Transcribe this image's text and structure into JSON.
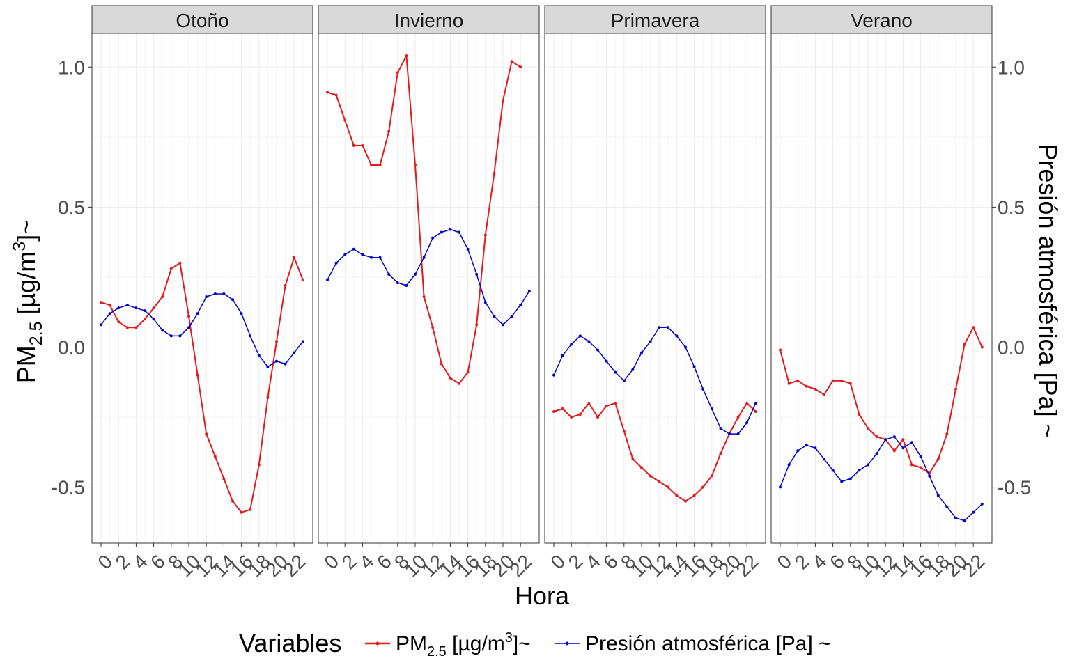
{
  "chart_data": {
    "type": "line",
    "facets": [
      "Otoño",
      "Invierno",
      "Primavera",
      "Verano"
    ],
    "x": [
      0,
      1,
      2,
      3,
      4,
      5,
      6,
      7,
      8,
      9,
      10,
      11,
      12,
      13,
      14,
      15,
      16,
      17,
      18,
      19,
      20,
      21,
      22,
      23
    ],
    "xticks": [
      "0",
      "2",
      "4",
      "6",
      "8",
      "10",
      "12",
      "14",
      "16",
      "18",
      "20",
      "22"
    ],
    "xlabel": "Hora",
    "ylabel_left": {
      "main": "PM",
      "sub": "2.5",
      "rest": " [µg/m",
      "sup": "3",
      "end": "]~"
    },
    "ylabel_right": "Presión atmosférica [Pa] ~",
    "yticks": [
      "-0.5",
      "0.0",
      "0.5",
      "1.0"
    ],
    "ytick_values": [
      -0.5,
      0.0,
      0.5,
      1.0
    ],
    "ylim": [
      -0.7,
      1.12
    ],
    "grid": true,
    "legend": {
      "title": "Variables",
      "position": "bottom",
      "pm_label": {
        "main": "PM",
        "sub": "2.5",
        "rest": " [µg/m",
        "sup": "3",
        "end": "]~"
      },
      "pres_label": "Presión atmosférica [Pa] ~"
    },
    "series": [
      {
        "key": "pm25",
        "color": "#e31a1c",
        "values": {
          "Otoño": [
            0.16,
            0.15,
            0.09,
            0.07,
            0.07,
            0.1,
            0.14,
            0.18,
            0.28,
            0.3,
            0.11,
            -0.1,
            -0.31,
            -0.39,
            -0.47,
            -0.55,
            -0.59,
            -0.58,
            -0.42,
            -0.18,
            0.02,
            0.22,
            0.32,
            0.24
          ],
          "Invierno": [
            0.91,
            0.9,
            0.81,
            0.72,
            0.72,
            0.65,
            0.65,
            0.77,
            0.98,
            1.04,
            0.65,
            0.18,
            0.07,
            -0.06,
            -0.11,
            -0.13,
            -0.09,
            0.08,
            0.4,
            0.62,
            0.88,
            1.02,
            1.0,
            null
          ],
          "Primavera": [
            -0.23,
            -0.22,
            -0.25,
            -0.24,
            -0.2,
            -0.25,
            -0.21,
            -0.2,
            -0.3,
            -0.4,
            -0.43,
            -0.46,
            -0.48,
            -0.5,
            -0.53,
            -0.55,
            -0.53,
            -0.5,
            -0.46,
            -0.38,
            -0.31,
            -0.25,
            -0.2,
            -0.23
          ],
          "Verano": [
            -0.01,
            -0.13,
            -0.12,
            -0.14,
            -0.15,
            -0.17,
            -0.12,
            -0.12,
            -0.13,
            -0.24,
            -0.29,
            -0.32,
            -0.33,
            -0.37,
            -0.33,
            -0.42,
            -0.43,
            -0.45,
            -0.4,
            -0.31,
            -0.15,
            0.01,
            0.07,
            0.0
          ]
        }
      },
      {
        "key": "presion",
        "color": "#0000cc",
        "values": {
          "Otoño": [
            0.08,
            0.12,
            0.14,
            0.15,
            0.14,
            0.13,
            0.1,
            0.06,
            0.04,
            0.04,
            0.07,
            0.12,
            0.18,
            0.19,
            0.19,
            0.17,
            0.12,
            0.04,
            -0.03,
            -0.07,
            -0.05,
            -0.06,
            -0.02,
            0.02
          ],
          "Invierno": [
            0.24,
            0.3,
            0.33,
            0.35,
            0.33,
            0.32,
            0.32,
            0.26,
            0.23,
            0.22,
            0.26,
            0.32,
            0.39,
            0.41,
            0.42,
            0.41,
            0.35,
            0.26,
            0.16,
            0.11,
            0.08,
            0.11,
            0.15,
            0.2
          ],
          "Primavera": [
            -0.1,
            -0.03,
            0.01,
            0.04,
            0.02,
            -0.01,
            -0.05,
            -0.09,
            -0.12,
            -0.08,
            -0.02,
            0.02,
            0.07,
            0.07,
            0.04,
            0.0,
            -0.07,
            -0.15,
            -0.22,
            -0.29,
            -0.31,
            -0.31,
            -0.27,
            -0.2
          ],
          "Verano": [
            -0.5,
            -0.42,
            -0.37,
            -0.35,
            -0.36,
            -0.4,
            -0.44,
            -0.48,
            -0.47,
            -0.44,
            -0.42,
            -0.38,
            -0.33,
            -0.32,
            -0.36,
            -0.34,
            -0.39,
            -0.46,
            -0.53,
            -0.57,
            -0.61,
            -0.62,
            -0.59,
            -0.56
          ]
        }
      }
    ]
  }
}
